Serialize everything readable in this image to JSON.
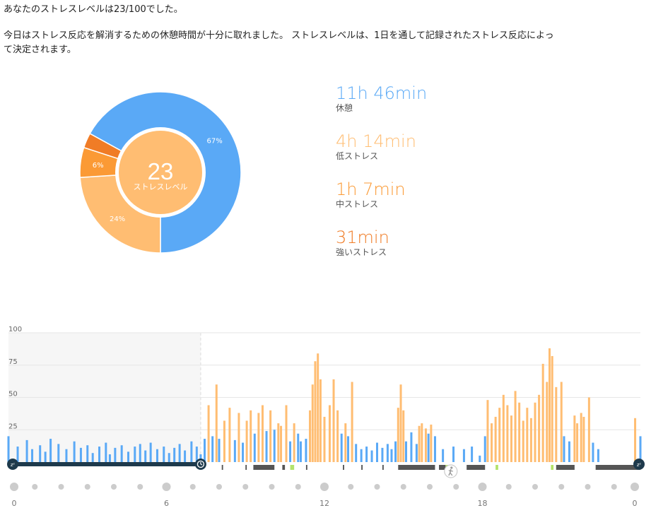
{
  "summary": {
    "line1": "あなたのストレスレベルは23/100でした。",
    "line2": "今日はストレス反応を解消するための休憩時間が十分に取れました。 ストレスレベルは、1日を通して記録されたストレス反応によって決定されます。"
  },
  "colors": {
    "rest": "#5aa9f6",
    "low": "#ffbd72",
    "medium": "#fb9a35",
    "high": "#f07c26",
    "center": "#ffbd72",
    "sleep_bar": "#1e3a4c",
    "activity_dark": "#555555",
    "activity_green": "#b3e36b"
  },
  "stress_level": {
    "value": "23",
    "label": "ストレスレベル"
  },
  "stats": [
    {
      "value": "11h 46min",
      "label": "休憩",
      "color": "#5aa9f6"
    },
    {
      "value": "4h 14min",
      "label": "低ストレス",
      "color": "#ffbd72"
    },
    {
      "value": "1h 7min",
      "label": "中ストレス",
      "color": "#fb9a35"
    },
    {
      "value": "31min",
      "label": "強いストレス",
      "color": "#f07c26"
    }
  ],
  "chart_data": [
    {
      "type": "pie",
      "donut": true,
      "slices": [
        {
          "name": "休憩",
          "value": 67,
          "label": "67%",
          "color": "#5aa9f6"
        },
        {
          "name": "低ストレス",
          "value": 24,
          "label": "24%",
          "color": "#ffbd72"
        },
        {
          "name": "中ストレス",
          "value": 6,
          "label": "6%",
          "color": "#fb9a35"
        },
        {
          "name": "強いストレス",
          "value": 3,
          "label": "",
          "color": "#f07c26"
        }
      ]
    },
    {
      "type": "bar",
      "x_unit": "hour",
      "xlim": [
        0,
        24
      ],
      "ylim": [
        0,
        100
      ],
      "y_ticks": [
        25,
        50,
        75,
        100
      ],
      "x_tick_labels": [
        {
          "hour": 0,
          "label": "0"
        },
        {
          "hour": 6,
          "label": "6"
        },
        {
          "hour": 12,
          "label": "12"
        },
        {
          "hour": 18,
          "label": "18"
        },
        {
          "hour": 24,
          "label": "0"
        }
      ],
      "sleep_period_hours": [
        0,
        7.3
      ],
      "grid": true,
      "threshold": 25,
      "points": [
        [
          0.0,
          20
        ],
        [
          0.35,
          12
        ],
        [
          0.7,
          17
        ],
        [
          0.9,
          10
        ],
        [
          1.2,
          13
        ],
        [
          1.4,
          8
        ],
        [
          1.6,
          18
        ],
        [
          1.9,
          14
        ],
        [
          2.2,
          10
        ],
        [
          2.5,
          16
        ],
        [
          2.75,
          11
        ],
        [
          3.0,
          13
        ],
        [
          3.2,
          7
        ],
        [
          3.45,
          12
        ],
        [
          3.7,
          15
        ],
        [
          3.85,
          6
        ],
        [
          4.05,
          11
        ],
        [
          4.3,
          13
        ],
        [
          4.55,
          8
        ],
        [
          4.8,
          12
        ],
        [
          5.0,
          14
        ],
        [
          5.2,
          9
        ],
        [
          5.4,
          15
        ],
        [
          5.65,
          10
        ],
        [
          5.9,
          12
        ],
        [
          6.1,
          7
        ],
        [
          6.3,
          11
        ],
        [
          6.5,
          14
        ],
        [
          6.7,
          9
        ],
        [
          6.95,
          16
        ],
        [
          7.15,
          12
        ],
        [
          7.3,
          6
        ],
        [
          7.45,
          18
        ],
        [
          7.6,
          44
        ],
        [
          7.75,
          20
        ],
        [
          7.9,
          60
        ],
        [
          8.0,
          18
        ],
        [
          8.2,
          32
        ],
        [
          8.4,
          42
        ],
        [
          8.6,
          17
        ],
        [
          8.75,
          38
        ],
        [
          8.9,
          15
        ],
        [
          9.05,
          32
        ],
        [
          9.2,
          40
        ],
        [
          9.35,
          22
        ],
        [
          9.5,
          38
        ],
        [
          9.65,
          44
        ],
        [
          9.8,
          24
        ],
        [
          9.95,
          40
        ],
        [
          10.1,
          25
        ],
        [
          10.25,
          30
        ],
        [
          10.35,
          28
        ],
        [
          10.55,
          44
        ],
        [
          10.7,
          16
        ],
        [
          10.85,
          30
        ],
        [
          11.0,
          22
        ],
        [
          11.1,
          16
        ],
        [
          11.3,
          18
        ],
        [
          11.45,
          40
        ],
        [
          11.55,
          60
        ],
        [
          11.65,
          78
        ],
        [
          11.75,
          84
        ],
        [
          11.85,
          64
        ],
        [
          12.0,
          35
        ],
        [
          12.2,
          44
        ],
        [
          12.35,
          64
        ],
        [
          12.5,
          40
        ],
        [
          12.65,
          22
        ],
        [
          12.8,
          30
        ],
        [
          12.9,
          20
        ],
        [
          13.05,
          62
        ],
        [
          13.2,
          14
        ],
        [
          13.4,
          10
        ],
        [
          13.6,
          12
        ],
        [
          13.8,
          9
        ],
        [
          14.0,
          15
        ],
        [
          14.2,
          11
        ],
        [
          14.4,
          14
        ],
        [
          14.55,
          10
        ],
        [
          14.7,
          16
        ],
        [
          14.8,
          42
        ],
        [
          14.9,
          60
        ],
        [
          15.0,
          40
        ],
        [
          15.1,
          16
        ],
        [
          15.3,
          23
        ],
        [
          15.5,
          14
        ],
        [
          15.6,
          28
        ],
        [
          15.7,
          30
        ],
        [
          15.85,
          26
        ],
        [
          15.95,
          22
        ],
        [
          16.05,
          29
        ],
        [
          16.2,
          20
        ],
        [
          16.5,
          10
        ],
        [
          16.9,
          12
        ],
        [
          17.3,
          10
        ],
        [
          17.6,
          12
        ],
        [
          17.9,
          5
        ],
        [
          18.1,
          20
        ],
        [
          18.2,
          48
        ],
        [
          18.35,
          30
        ],
        [
          18.5,
          35
        ],
        [
          18.65,
          42
        ],
        [
          18.8,
          52
        ],
        [
          18.95,
          44
        ],
        [
          19.1,
          36
        ],
        [
          19.25,
          55
        ],
        [
          19.4,
          46
        ],
        [
          19.55,
          32
        ],
        [
          19.7,
          42
        ],
        [
          19.85,
          34
        ],
        [
          20.0,
          46
        ],
        [
          20.15,
          52
        ],
        [
          20.3,
          76
        ],
        [
          20.45,
          62
        ],
        [
          20.55,
          88
        ],
        [
          20.65,
          82
        ],
        [
          20.8,
          58
        ],
        [
          21.0,
          62
        ],
        [
          21.1,
          20
        ],
        [
          21.3,
          16
        ],
        [
          21.5,
          36
        ],
        [
          21.6,
          30
        ],
        [
          21.75,
          38
        ],
        [
          21.85,
          35
        ],
        [
          22.05,
          50
        ],
        [
          22.2,
          15
        ],
        [
          22.4,
          10
        ],
        [
          23.8,
          34
        ],
        [
          24.0,
          20
        ]
      ]
    }
  ]
}
